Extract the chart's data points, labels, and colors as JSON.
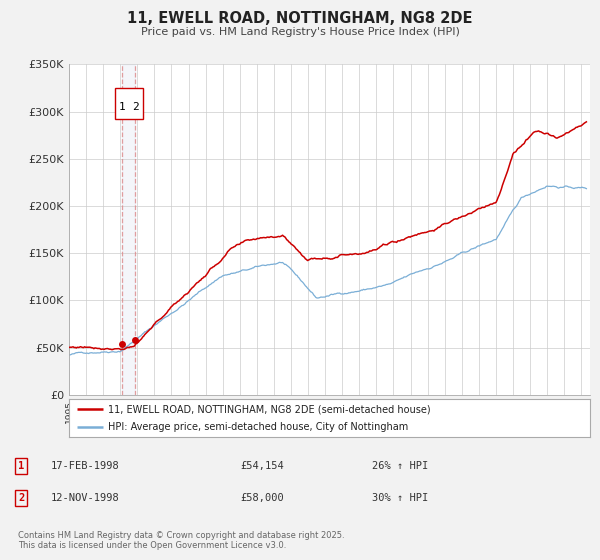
{
  "title": "11, EWELL ROAD, NOTTINGHAM, NG8 2DE",
  "subtitle": "Price paid vs. HM Land Registry's House Price Index (HPI)",
  "legend_line1": "11, EWELL ROAD, NOTTINGHAM, NG8 2DE (semi-detached house)",
  "legend_line2": "HPI: Average price, semi-detached house, City of Nottingham",
  "red_color": "#cc0000",
  "blue_color": "#7aaed6",
  "purchase1_date": "17-FEB-1998",
  "purchase1_price": 54154,
  "purchase1_hpi": "26% ↑ HPI",
  "purchase2_date": "12-NOV-1998",
  "purchase2_price": 58000,
  "purchase2_hpi": "30% ↑ HPI",
  "footnote": "Contains HM Land Registry data © Crown copyright and database right 2025.\nThis data is licensed under the Open Government Licence v3.0.",
  "bg_color": "#f2f2f2",
  "plot_bg_color": "#ffffff",
  "grid_color": "#cccccc",
  "ylim": [
    0,
    350000
  ],
  "yticks": [
    0,
    50000,
    100000,
    150000,
    200000,
    250000,
    300000,
    350000
  ],
  "xlim_start": 1995.0,
  "xlim_end": 2025.5,
  "purchase1_year": 1998.13,
  "purchase2_year": 1998.87
}
